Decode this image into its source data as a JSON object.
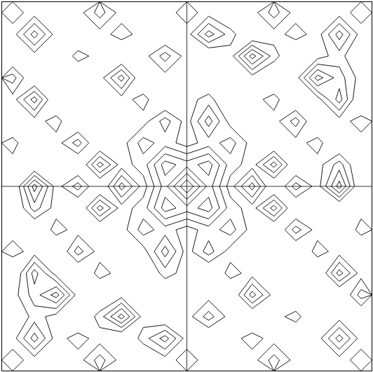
{
  "chart_data": {
    "type": "contour",
    "xlim": [
      0,
      17
    ],
    "ylim": [
      0,
      17
    ],
    "tick_labels": false,
    "color": "#000000",
    "thresholds": [
      2.5,
      3.5,
      4.5,
      5.5,
      7,
      8.5
    ],
    "cells": [
      [
        3,
        2,
        1,
        2,
        4,
        2,
        1,
        2,
        3,
        2,
        1,
        2,
        4,
        2,
        1,
        2,
        3
      ],
      [
        2,
        5,
        2,
        1,
        2,
        3,
        2,
        1,
        2,
        5,
        3,
        1,
        2,
        3,
        2,
        5,
        2
      ],
      [
        1,
        2,
        1,
        3,
        2,
        1,
        2,
        4,
        2,
        1,
        2,
        6,
        3,
        1,
        2,
        3,
        1
      ],
      [
        4,
        1,
        2,
        1,
        2,
        5,
        1,
        2,
        2,
        1,
        2,
        2,
        1,
        2,
        6,
        4,
        2
      ],
      [
        2,
        5,
        1,
        2,
        1,
        2,
        3,
        1,
        2,
        3,
        1,
        2,
        3,
        1,
        2,
        5,
        1
      ],
      [
        1,
        2,
        3,
        1,
        2,
        1,
        2,
        4,
        2,
        5,
        2,
        1,
        2,
        4,
        1,
        2,
        3
      ],
      [
        3,
        1,
        2,
        4,
        1,
        2,
        4,
        3,
        2,
        3,
        4,
        2,
        1,
        2,
        3,
        1,
        2
      ],
      [
        2,
        1,
        2,
        1,
        5,
        2,
        3,
        6,
        5,
        6,
        3,
        2,
        5,
        1,
        2,
        4,
        1
      ],
      [
        1,
        6,
        2,
        4,
        1,
        5,
        2,
        5,
        10,
        5,
        2,
        5,
        1,
        4,
        2,
        6,
        1
      ],
      [
        1,
        4,
        2,
        1,
        5,
        2,
        3,
        6,
        5,
        6,
        3,
        2,
        5,
        1,
        2,
        1,
        2
      ],
      [
        2,
        1,
        3,
        2,
        1,
        2,
        4,
        3,
        2,
        3,
        4,
        2,
        1,
        4,
        2,
        1,
        3
      ],
      [
        3,
        2,
        1,
        4,
        2,
        1,
        2,
        5,
        2,
        4,
        2,
        1,
        2,
        1,
        3,
        2,
        1
      ],
      [
        1,
        5,
        2,
        1,
        3,
        2,
        1,
        3,
        2,
        1,
        3,
        2,
        1,
        2,
        1,
        5,
        2
      ],
      [
        2,
        4,
        6,
        2,
        1,
        2,
        2,
        1,
        2,
        2,
        1,
        5,
        2,
        1,
        2,
        1,
        4
      ],
      [
        1,
        3,
        2,
        1,
        3,
        6,
        2,
        1,
        2,
        4,
        2,
        1,
        2,
        3,
        1,
        2,
        1
      ],
      [
        2,
        5,
        2,
        3,
        2,
        1,
        3,
        5,
        2,
        1,
        2,
        3,
        2,
        1,
        2,
        5,
        2
      ],
      [
        3,
        2,
        1,
        2,
        4,
        2,
        1,
        2,
        3,
        2,
        1,
        2,
        4,
        2,
        1,
        2,
        3
      ]
    ]
  }
}
